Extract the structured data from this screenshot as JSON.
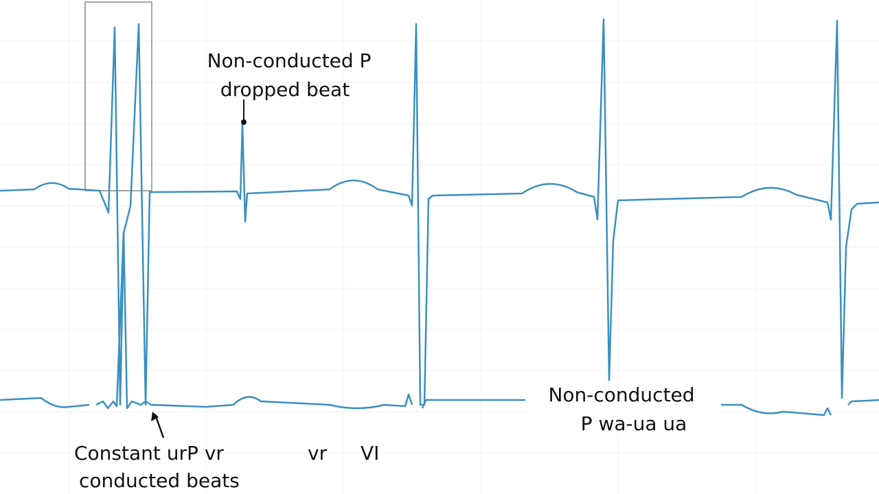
{
  "annotations": [
    {
      "lines": [
        "Non-conducted P",
        "dropped beat"
      ]
    },
    {
      "lines": [
        "Constant urP vr",
        "conducted beats"
      ]
    },
    {
      "lines": [
        "vr"
      ]
    },
    {
      "lines": [
        "VI"
      ]
    },
    {
      "lines": [
        "Non-conducted",
        "P wa-ua ua"
      ]
    }
  ]
}
